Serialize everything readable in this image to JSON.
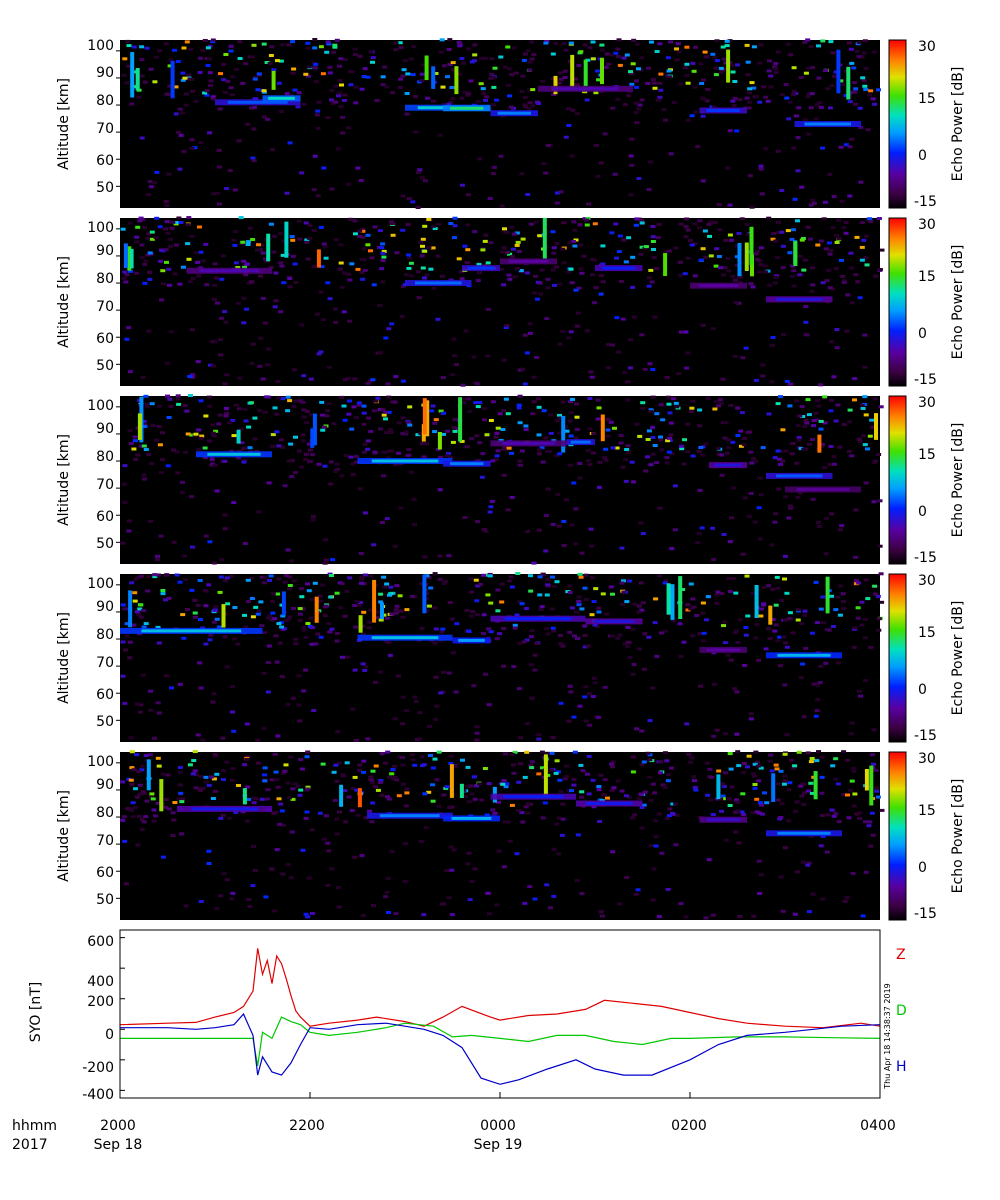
{
  "figure": {
    "x_ticks": [
      "2000",
      "2200",
      "0000",
      "0200",
      "0400"
    ],
    "x_tick_hours": [
      20,
      22,
      24,
      26,
      28
    ],
    "x_range_hours": [
      20,
      28
    ],
    "date_labels": [
      {
        "text": "Sep 18",
        "hour": 20
      },
      {
        "text": "Sep 19",
        "hour": 24
      }
    ],
    "corner_labels": {
      "hhmm": "hhmm",
      "year": "2017"
    },
    "timestamp": "Thu Apr 18 14:38:37 2019"
  },
  "panels": [
    {
      "ylabel": "Altitude [km]",
      "y_ticks": [
        "50",
        "60",
        "70",
        "80",
        "90",
        "100"
      ],
      "y_range": [
        42,
        104
      ],
      "colorbar_label": "Echo Power [dB]",
      "colorbar_ticks": [
        "30",
        "15",
        "0",
        "-15"
      ],
      "bands": [
        {
          "t0": 21.0,
          "t1": 21.9,
          "alt": 81.0,
          "intensity": 0.38
        },
        {
          "t0": 21.5,
          "t1": 21.9,
          "alt": 82.5,
          "intensity": 0.55
        },
        {
          "t0": 23.0,
          "t1": 23.9,
          "alt": 79.0,
          "intensity": 0.52
        },
        {
          "t0": 23.4,
          "t1": 23.9,
          "alt": 78.8,
          "intensity": 0.6
        },
        {
          "t0": 23.9,
          "t1": 24.4,
          "alt": 77.0,
          "intensity": 0.42
        },
        {
          "t0": 24.4,
          "t1": 25.4,
          "alt": 86.0,
          "intensity": 0.22
        },
        {
          "t0": 26.1,
          "t1": 26.6,
          "alt": 78.0,
          "intensity": 0.35
        },
        {
          "t0": 27.1,
          "t1": 27.8,
          "alt": 73.0,
          "intensity": 0.42
        }
      ]
    },
    {
      "ylabel": "Altitude [km]",
      "y_ticks": [
        "50",
        "60",
        "70",
        "80",
        "90",
        "100"
      ],
      "y_range": [
        42,
        104
      ],
      "colorbar_label": "Echo Power [dB]",
      "colorbar_ticks": [
        "30",
        "15",
        "0",
        "-15"
      ],
      "bands": [
        {
          "t0": 20.7,
          "t1": 21.6,
          "alt": 84.5,
          "intensity": 0.22
        },
        {
          "t0": 23.0,
          "t1": 23.7,
          "alt": 80.0,
          "intensity": 0.4
        },
        {
          "t0": 23.6,
          "t1": 24.0,
          "alt": 85.5,
          "intensity": 0.35
        },
        {
          "t0": 24.0,
          "t1": 24.6,
          "alt": 88.0,
          "intensity": 0.2
        },
        {
          "t0": 25.0,
          "t1": 25.5,
          "alt": 85.5,
          "intensity": 0.32
        },
        {
          "t0": 26.0,
          "t1": 26.6,
          "alt": 79.0,
          "intensity": 0.2
        },
        {
          "t0": 26.8,
          "t1": 27.5,
          "alt": 74.0,
          "intensity": 0.28
        }
      ]
    },
    {
      "ylabel": "Altitude [km]",
      "y_ticks": [
        "50",
        "60",
        "70",
        "80",
        "90",
        "100"
      ],
      "y_range": [
        42,
        104
      ],
      "colorbar_label": "Echo Power [dB]",
      "colorbar_ticks": [
        "30",
        "15",
        "0",
        "-15"
      ],
      "bands": [
        {
          "t0": 20.8,
          "t1": 21.6,
          "alt": 82.5,
          "intensity": 0.5
        },
        {
          "t0": 22.5,
          "t1": 23.5,
          "alt": 80.0,
          "intensity": 0.5
        },
        {
          "t0": 23.4,
          "t1": 23.9,
          "alt": 79.0,
          "intensity": 0.42
        },
        {
          "t0": 23.9,
          "t1": 24.7,
          "alt": 86.5,
          "intensity": 0.22
        },
        {
          "t0": 24.7,
          "t1": 25.0,
          "alt": 87.0,
          "intensity": 0.4
        },
        {
          "t0": 26.2,
          "t1": 26.6,
          "alt": 78.5,
          "intensity": 0.28
        },
        {
          "t0": 26.8,
          "t1": 27.5,
          "alt": 74.5,
          "intensity": 0.38
        },
        {
          "t0": 27.0,
          "t1": 27.8,
          "alt": 69.5,
          "intensity": 0.18
        }
      ]
    },
    {
      "ylabel": "Altitude [km]",
      "y_ticks": [
        "50",
        "60",
        "70",
        "80",
        "90",
        "100"
      ],
      "y_range": [
        42,
        104
      ],
      "colorbar_label": "Echo Power [dB]",
      "colorbar_ticks": [
        "30",
        "15",
        "0",
        "-15"
      ],
      "bands": [
        {
          "t0": 20.0,
          "t1": 21.5,
          "alt": 83.0,
          "intensity": 0.5
        },
        {
          "t0": 22.5,
          "t1": 23.5,
          "alt": 80.5,
          "intensity": 0.5
        },
        {
          "t0": 23.5,
          "t1": 23.9,
          "alt": 79.5,
          "intensity": 0.45
        },
        {
          "t0": 23.9,
          "t1": 24.9,
          "alt": 87.5,
          "intensity": 0.32
        },
        {
          "t0": 24.9,
          "t1": 25.5,
          "alt": 86.5,
          "intensity": 0.28
        },
        {
          "t0": 26.1,
          "t1": 26.6,
          "alt": 76.0,
          "intensity": 0.2
        },
        {
          "t0": 26.8,
          "t1": 27.6,
          "alt": 74.0,
          "intensity": 0.48
        }
      ]
    },
    {
      "ylabel": "Altitude [km]",
      "y_ticks": [
        "50",
        "60",
        "70",
        "80",
        "90",
        "100"
      ],
      "y_range": [
        42,
        104
      ],
      "colorbar_label": "Echo Power [dB]",
      "colorbar_ticks": [
        "30",
        "15",
        "0",
        "-15"
      ],
      "bands": [
        {
          "t0": 20.6,
          "t1": 21.6,
          "alt": 83.0,
          "intensity": 0.3
        },
        {
          "t0": 22.6,
          "t1": 23.5,
          "alt": 80.5,
          "intensity": 0.42
        },
        {
          "t0": 23.4,
          "t1": 24.0,
          "alt": 79.5,
          "intensity": 0.48
        },
        {
          "t0": 23.9,
          "t1": 24.8,
          "alt": 87.5,
          "intensity": 0.32
        },
        {
          "t0": 24.8,
          "t1": 25.5,
          "alt": 85.0,
          "intensity": 0.3
        },
        {
          "t0": 26.1,
          "t1": 26.6,
          "alt": 79.0,
          "intensity": 0.25
        },
        {
          "t0": 26.8,
          "t1": 27.6,
          "alt": 74.0,
          "intensity": 0.42
        }
      ]
    }
  ],
  "chart_data": {
    "type": "line",
    "ylabel": "SYO [nT]",
    "y_ticks": [
      -400,
      -200,
      0,
      200,
      400,
      600
    ],
    "ylim": [
      -450,
      650
    ],
    "x_range_hours": [
      20,
      28
    ],
    "series": [
      {
        "name": "Z",
        "color": "#e00000",
        "x": [
          20.0,
          20.5,
          20.8,
          21.0,
          21.2,
          21.3,
          21.4,
          21.45,
          21.5,
          21.55,
          21.6,
          21.65,
          21.7,
          21.75,
          21.8,
          21.85,
          21.9,
          22.0,
          22.2,
          22.5,
          22.7,
          23.0,
          23.2,
          23.4,
          23.6,
          23.9,
          24.0,
          24.3,
          24.6,
          24.9,
          25.1,
          25.4,
          25.7,
          26.0,
          26.3,
          26.6,
          27.0,
          27.4,
          27.8,
          28.0
        ],
        "values": [
          30,
          40,
          45,
          80,
          110,
          150,
          250,
          530,
          360,
          450,
          300,
          480,
          430,
          330,
          220,
          120,
          80,
          20,
          40,
          60,
          80,
          50,
          20,
          80,
          150,
          80,
          60,
          90,
          100,
          130,
          190,
          170,
          150,
          110,
          70,
          40,
          20,
          10,
          40,
          20
        ]
      },
      {
        "name": "D",
        "color": "#00c800",
        "x": [
          20.0,
          20.5,
          21.0,
          21.3,
          21.4,
          21.45,
          21.5,
          21.6,
          21.7,
          21.8,
          21.9,
          22.0,
          22.2,
          22.5,
          22.8,
          23.0,
          23.3,
          23.5,
          23.7,
          24.0,
          24.3,
          24.6,
          24.9,
          25.2,
          25.5,
          25.8,
          26.0,
          26.5,
          27.0,
          27.5,
          28.0
        ],
        "values": [
          -60,
          -60,
          -60,
          -60,
          -60,
          -240,
          -20,
          -60,
          80,
          50,
          30,
          -20,
          -40,
          -20,
          10,
          40,
          20,
          -50,
          -40,
          -60,
          -80,
          -40,
          -40,
          -80,
          -100,
          -60,
          -60,
          -50,
          -50,
          -55,
          -60
        ]
      },
      {
        "name": "H",
        "color": "#0000c8",
        "x": [
          20.0,
          20.5,
          20.8,
          21.0,
          21.2,
          21.3,
          21.4,
          21.45,
          21.5,
          21.6,
          21.7,
          21.8,
          21.9,
          22.0,
          22.2,
          22.5,
          22.8,
          23.0,
          23.2,
          23.4,
          23.6,
          23.8,
          24.0,
          24.2,
          24.5,
          24.8,
          25.0,
          25.3,
          25.6,
          26.0,
          26.3,
          26.6,
          27.0,
          27.3,
          27.6,
          28.0
        ],
        "values": [
          10,
          10,
          0,
          10,
          30,
          100,
          -40,
          -300,
          -180,
          -280,
          -300,
          -220,
          -100,
          10,
          0,
          30,
          40,
          20,
          0,
          -40,
          -120,
          -320,
          -360,
          -330,
          -260,
          -200,
          -260,
          -300,
          -300,
          -200,
          -100,
          -40,
          -20,
          0,
          20,
          30
        ]
      }
    ]
  }
}
